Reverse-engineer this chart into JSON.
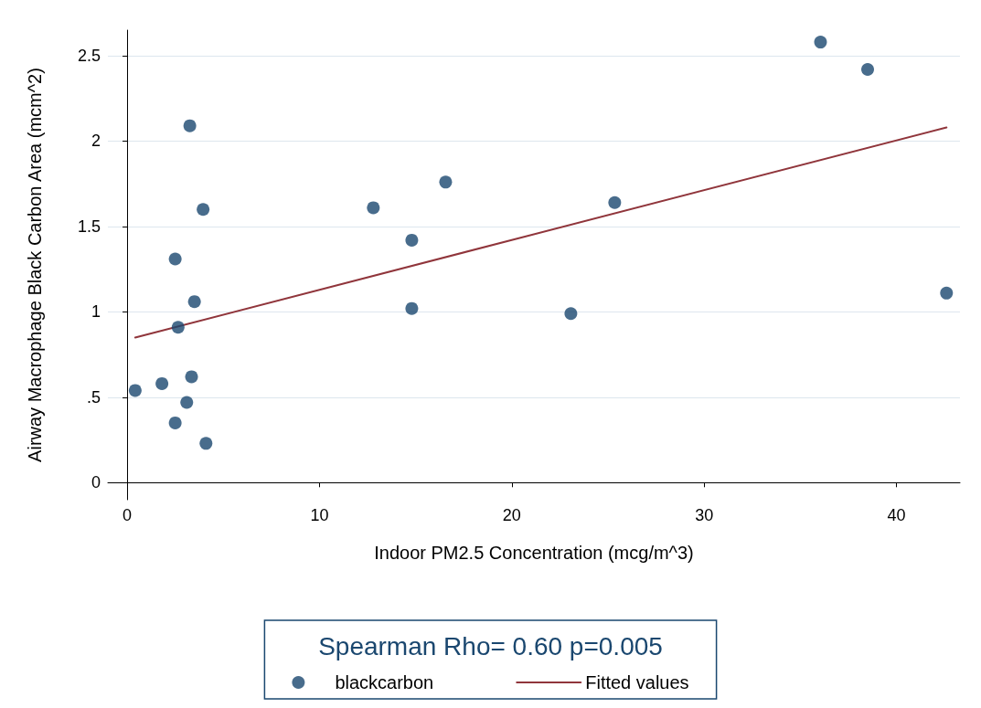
{
  "chart_data": {
    "type": "scatter",
    "xlabel": "Indoor PM2.5 Concentration (mcg/m^3)",
    "ylabel": "Airway Macrophage Black Carbon Area (mcm^2)",
    "legend_title": "Spearman Rho= 0.60 p=0.005",
    "legend": "bottom",
    "grid": "y",
    "marker": "circle",
    "xlim": [
      -1,
      43.3
    ],
    "xticks": [
      0,
      10,
      20,
      30,
      40
    ],
    "ylim": [
      -0.1,
      2.65
    ],
    "yticks": [
      0,
      {
        "value": 0.5,
        "label": ".5"
      },
      1,
      1.5,
      2,
      2.5
    ],
    "series": [
      {
        "name": "blackcarbon",
        "color": "#1a476f",
        "x": [
          0.42,
          1.81,
          2.5,
          2.5,
          2.65,
          3.1,
          3.26,
          3.35,
          3.5,
          3.95,
          4.1,
          12.8,
          14.8,
          14.8,
          16.56,
          23.07,
          25.35,
          36.05,
          38.5,
          42.6
        ],
        "values": [
          0.54,
          0.58,
          1.31,
          0.35,
          0.91,
          0.47,
          2.09,
          0.62,
          1.06,
          1.6,
          0.23,
          1.61,
          1.42,
          1.02,
          1.76,
          0.99,
          1.64,
          2.58,
          2.42,
          1.11
        ]
      },
      {
        "name": "Fitted values",
        "type": "line",
        "color": "#90353b",
        "marker": "none",
        "line_style": "solid",
        "x": [
          0.42,
          42.6
        ],
        "values": [
          0.85,
          2.08
        ]
      }
    ]
  }
}
